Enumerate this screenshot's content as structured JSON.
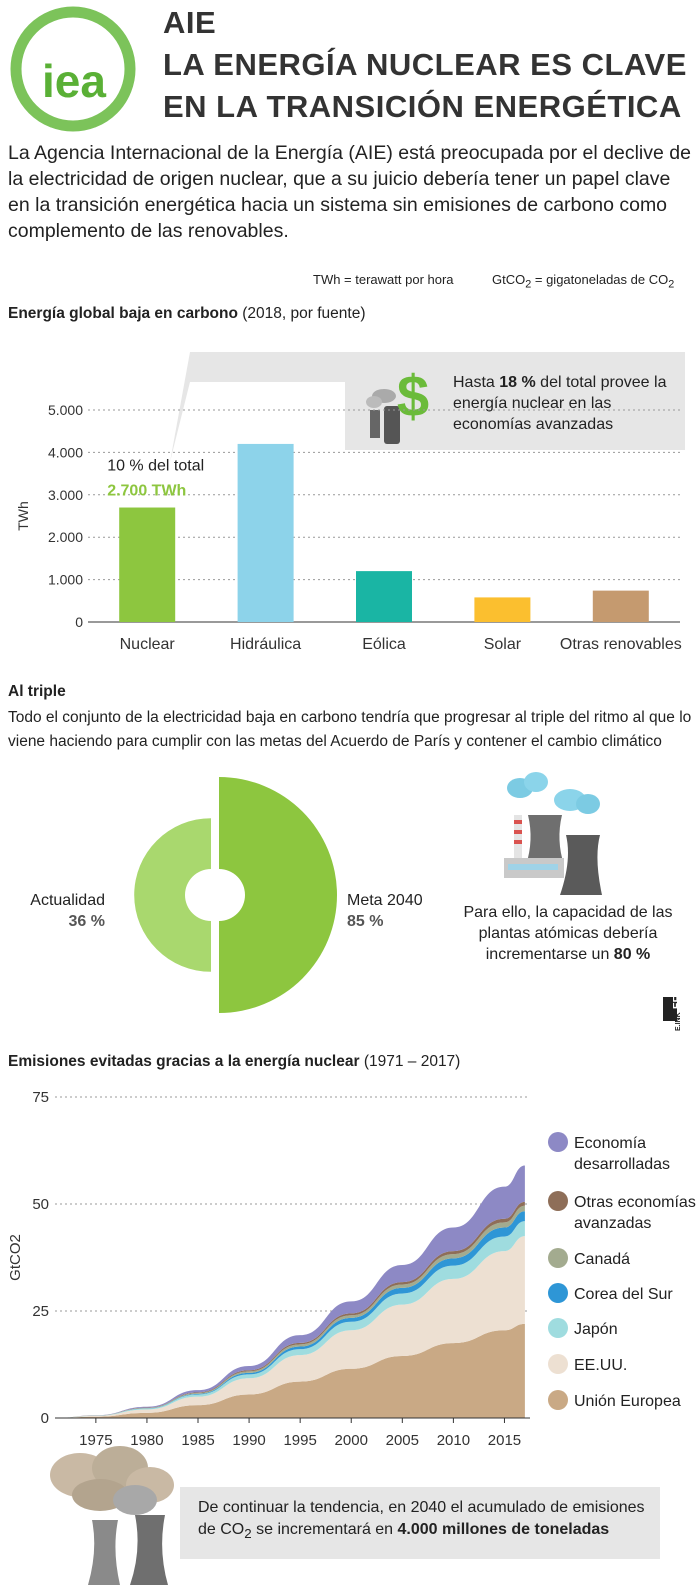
{
  "header": {
    "line1": "AIE",
    "line2": "LA ENERGÍA NUCLEAR ES CLAVE",
    "line3": "EN LA TRANSICIÓN ENERGÉTICA",
    "logo_text": "iea"
  },
  "intro": "La Agencia Internacional de la Energía (AIE) está preocupada por el declive de la electricidad de origen nuclear, que a su juicio debería tener un papel clave en la transición energética hacia un sistema sin emisiones de carbono como complemento de las renovables.",
  "units": {
    "twh_prefix": "TWh = terawatt por hora",
    "gtco2_prefix": "GtCO",
    "gtco2_sub": "2",
    "gtco2_mid": " = gigatoneladas de CO",
    "gtco2_sub2": "2"
  },
  "section1": {
    "title_bold": "Energía global baja en carbono",
    "title_rest": " (2018, por fuente)",
    "callout_pre": "Hasta ",
    "callout_bold": "18 %",
    "callout_post": " del total provee la energía nuclear en las economías avanzadas",
    "annot_line1": "10 % del total",
    "annot_line2": "2.700 TWh"
  },
  "section2": {
    "title": "Al triple",
    "text": "Todo el conjunto de la electricidad baja en carbono tendría que progresar al triple del ritmo al que lo viene haciendo para cumplir con las metas del Acuerdo de París y contener el cambio climático",
    "left_label": "Actualidad",
    "left_value": "36 %",
    "right_label": "Meta 2040",
    "right_value": "85 %",
    "plant_text_pre": "Para ello, la capacidad de las plantas atómicas debería incrementarse un ",
    "plant_text_bold": "80 %"
  },
  "section3": {
    "title_bold": "Emisiones evitadas gracias a la energía nuclear",
    "title_rest": " (1971 – 2017)",
    "bottom_pre": "De continuar la tendencia, en 2040 el acumulado de emisiones de CO",
    "bottom_sub": "2",
    "bottom_mid": " se incrementará en ",
    "bottom_bold": "4.000 millones de toneladas"
  },
  "credit": "EFE",
  "credit_small": "E.INK",
  "colors": {
    "nuclear": "#8dc63f",
    "hidraulica": "#8dd3ea",
    "eolica": "#1ab5a4",
    "solar": "#fbbf2f",
    "otras": "#c59a6f",
    "accent_green": "#8dc63f"
  },
  "chart_data": [
    {
      "type": "bar",
      "title": "Energía global baja en carbono (2018, por fuente)",
      "ylabel": "TWh",
      "categories": [
        "Nuclear",
        "Hidráulica",
        "Eólica",
        "Solar",
        "Otras renovables"
      ],
      "values": [
        2700,
        4200,
        1200,
        580,
        740
      ],
      "ylim": [
        0,
        5000
      ],
      "yticks": [
        0,
        1000,
        2000,
        3000,
        4000,
        5000
      ],
      "ytick_labels": [
        "0",
        "1.000",
        "2.000",
        "3.000",
        "4.000",
        "5.000"
      ]
    },
    {
      "type": "pie",
      "title": "Al triple",
      "slices": [
        {
          "label": "Actualidad",
          "value": 36
        },
        {
          "label": "Meta 2040",
          "value": 85
        }
      ]
    },
    {
      "type": "area",
      "title": "Emisiones evitadas gracias a la energía nuclear (1971 – 2017)",
      "ylabel": "GtCO2",
      "ylim": [
        0,
        75
      ],
      "yticks": [
        0,
        25,
        50,
        75
      ],
      "xticks": [
        1975,
        1980,
        1985,
        1990,
        1995,
        2000,
        2005,
        2010,
        2015
      ],
      "x": [
        1971,
        1975,
        1980,
        1985,
        1990,
        1995,
        2000,
        2005,
        2010,
        2015,
        2017
      ],
      "series": [
        {
          "name": "Unión Europea",
          "color": "#c9a985",
          "values": [
            0,
            0.3,
            1.2,
            3.0,
            5.5,
            8.5,
            11.5,
            14.5,
            17.5,
            20.5,
            22
          ]
        },
        {
          "name": "EE.UU.",
          "color": "#ede0d2",
          "values": [
            0,
            0.2,
            0.8,
            2.0,
            3.8,
            6.2,
            9.0,
            12.0,
            15.0,
            18.5,
            20.5
          ]
        },
        {
          "name": "Japón",
          "color": "#9fdcdf",
          "values": [
            0,
            0.05,
            0.2,
            0.5,
            0.9,
            1.4,
            2.0,
            2.6,
            3.1,
            3.4,
            3.5
          ]
        },
        {
          "name": "Corea del Sur",
          "color": "#2e96d6",
          "values": [
            0,
            0,
            0.05,
            0.15,
            0.35,
            0.6,
            0.9,
            1.3,
            1.7,
            2.1,
            2.3
          ]
        },
        {
          "name": "Canadá",
          "color": "#a3ab8f",
          "values": [
            0,
            0.03,
            0.1,
            0.2,
            0.35,
            0.5,
            0.6,
            0.8,
            1.0,
            1.2,
            1.3
          ]
        },
        {
          "name": "Otras economías avanzadas",
          "color": "#8e6e58",
          "values": [
            0,
            0.02,
            0.08,
            0.15,
            0.25,
            0.35,
            0.45,
            0.55,
            0.7,
            0.85,
            0.9
          ]
        },
        {
          "name": "Economía desarrolladas",
          "color": "#8d89c5",
          "values": [
            0,
            0.05,
            0.2,
            0.5,
            1.0,
            1.8,
            2.8,
            4.0,
            5.5,
            7.5,
            8.5
          ]
        }
      ],
      "legend_order": [
        "Economía desarrolladas",
        "Otras economías avanzadas",
        "Canadá",
        "Corea del Sur",
        "Japón",
        "EE.UU.",
        "Unión Europea"
      ],
      "legend_labels": [
        [
          "Economía",
          "desarrolladas"
        ],
        [
          "Otras economías",
          "avanzadas"
        ],
        [
          "Canadá"
        ],
        [
          "Corea del Sur"
        ],
        [
          "Japón"
        ],
        [
          "EE.UU."
        ],
        [
          "Unión Europea"
        ]
      ]
    }
  ]
}
